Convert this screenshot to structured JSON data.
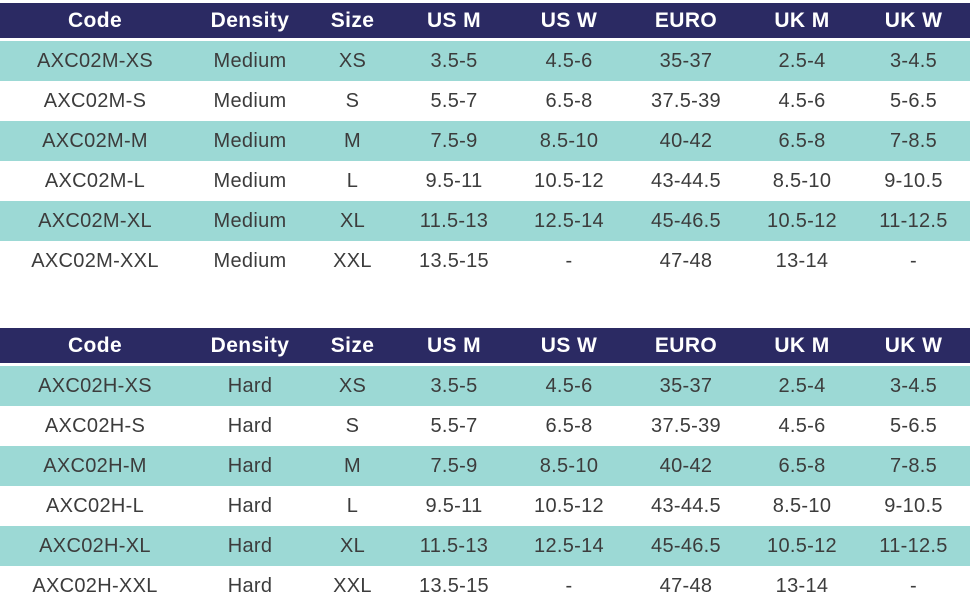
{
  "colors": {
    "header_bg": "#2B2A63",
    "header_text": "#FFFFFF",
    "row_teal": "#9CD9D5",
    "row_white": "#FFFFFF",
    "cell_text": "#3C3C3C"
  },
  "chart_data": [
    {
      "type": "table",
      "columns": [
        "Code",
        "Density",
        "Size",
        "US M",
        "US W",
        "EURO",
        "UK M",
        "UK W"
      ],
      "rows": [
        [
          "AXC02M-XS",
          "Medium",
          "XS",
          "3.5-5",
          "4.5-6",
          "35-37",
          "2.5-4",
          "3-4.5"
        ],
        [
          "AXC02M-S",
          "Medium",
          "S",
          "5.5-7",
          "6.5-8",
          "37.5-39",
          "4.5-6",
          "5-6.5"
        ],
        [
          "AXC02M-M",
          "Medium",
          "M",
          "7.5-9",
          "8.5-10",
          "40-42",
          "6.5-8",
          "7-8.5"
        ],
        [
          "AXC02M-L",
          "Medium",
          "L",
          "9.5-11",
          "10.5-12",
          "43-44.5",
          "8.5-10",
          "9-10.5"
        ],
        [
          "AXC02M-XL",
          "Medium",
          "XL",
          "11.5-13",
          "12.5-14",
          "45-46.5",
          "10.5-12",
          "11-12.5"
        ],
        [
          "AXC02M-XXL",
          "Medium",
          "XXL",
          "13.5-15",
          "-",
          "47-48",
          "13-14",
          "-"
        ]
      ]
    },
    {
      "type": "table",
      "columns": [
        "Code",
        "Density",
        "Size",
        "US M",
        "US W",
        "EURO",
        "UK M",
        "UK W"
      ],
      "rows": [
        [
          "AXC02H-XS",
          "Hard",
          "XS",
          "3.5-5",
          "4.5-6",
          "35-37",
          "2.5-4",
          "3-4.5"
        ],
        [
          "AXC02H-S",
          "Hard",
          "S",
          "5.5-7",
          "6.5-8",
          "37.5-39",
          "4.5-6",
          "5-6.5"
        ],
        [
          "AXC02H-M",
          "Hard",
          "M",
          "7.5-9",
          "8.5-10",
          "40-42",
          "6.5-8",
          "7-8.5"
        ],
        [
          "AXC02H-L",
          "Hard",
          "L",
          "9.5-11",
          "10.5-12",
          "43-44.5",
          "8.5-10",
          "9-10.5"
        ],
        [
          "AXC02H-XL",
          "Hard",
          "XL",
          "11.5-13",
          "12.5-14",
          "45-46.5",
          "10.5-12",
          "11-12.5"
        ],
        [
          "AXC02H-XXL",
          "Hard",
          "XXL",
          "13.5-15",
          "-",
          "47-48",
          "13-14",
          "-"
        ]
      ]
    }
  ]
}
